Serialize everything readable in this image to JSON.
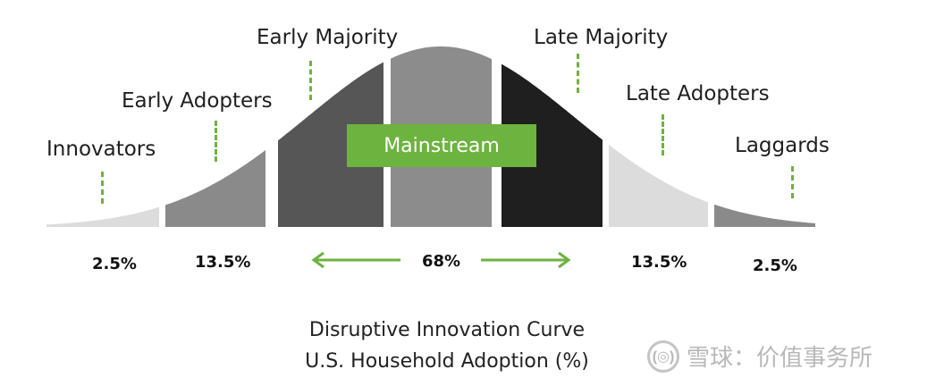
{
  "diagram": {
    "segments": [
      {
        "label": "Innovators",
        "percent": "2.5%",
        "color": "#dcdcdc"
      },
      {
        "label": "Early Adopters",
        "percent": "13.5%",
        "color": "#8a8a8a"
      },
      {
        "label": "Early Majority",
        "color": "#565656"
      },
      {
        "label": "",
        "color": "#8c8c8c"
      },
      {
        "label": "Late Majority",
        "color": "#1f1f1f"
      },
      {
        "label": "Late Adopters",
        "percent": "13.5%",
        "color": "#dcdcdc"
      },
      {
        "label": "Laggards",
        "percent": "2.5%",
        "color": "#8a8a8a"
      }
    ],
    "mainstream_label": "Mainstream",
    "mainstream_percent": "68%",
    "accent_color": "#6db33f",
    "caption_line1": "Disruptive Innovation Curve",
    "caption_line2": "U.S. Household Adoption (%)"
  },
  "watermark": {
    "brand": "雪球：价值事务所",
    "logo_text": "(◎)"
  }
}
